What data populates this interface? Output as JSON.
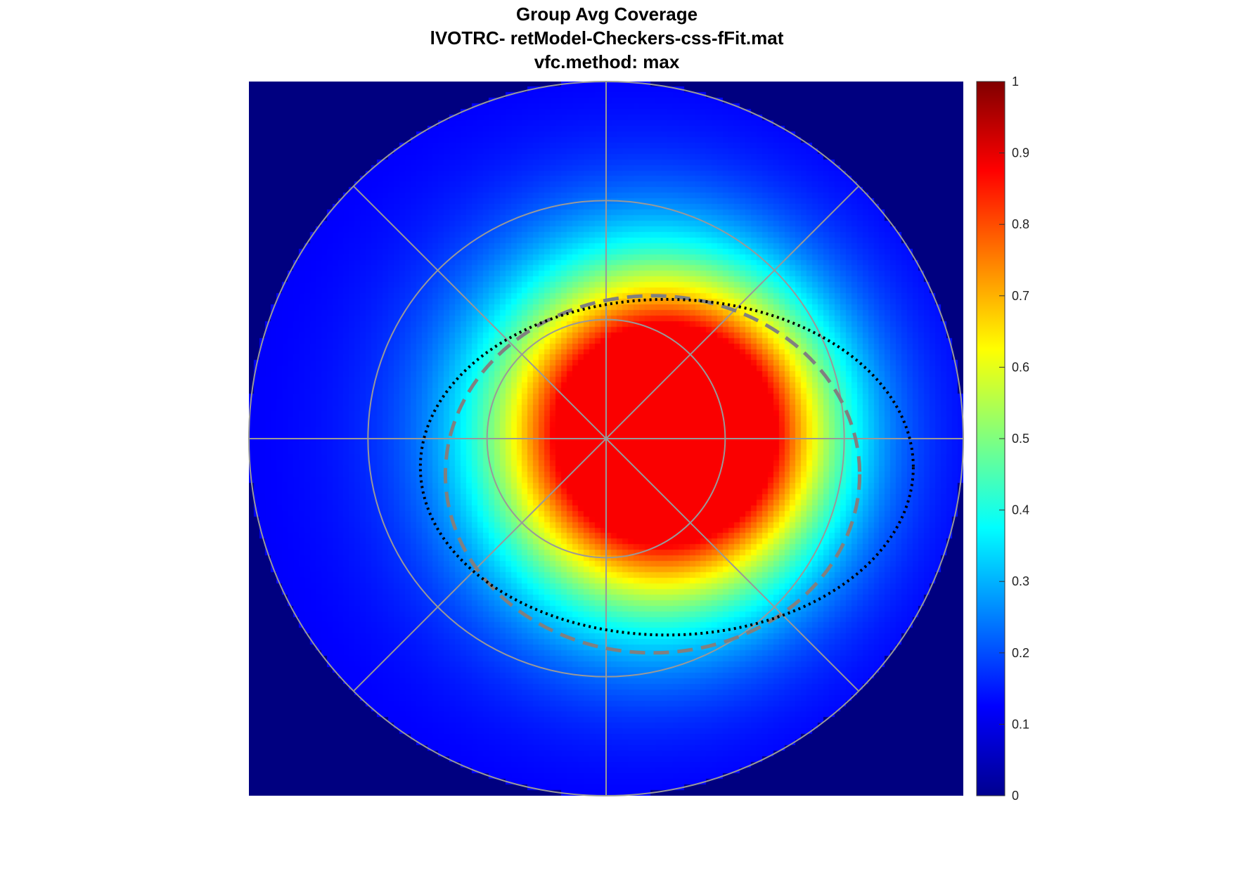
{
  "chart_data": {
    "type": "heatmap",
    "title": [
      "Group Avg Coverage",
      "lVOTRC- retModel-Checkers-css-fFit.mat",
      "vfc.method: max"
    ],
    "plot_kind": "polar visual field coverage map",
    "grid": true,
    "polar_grid": {
      "rings": 3,
      "spokes_deg": [
        0,
        45,
        90,
        135,
        180,
        225,
        270,
        315
      ],
      "color": "#999999"
    },
    "coverage_peak": {
      "x": 0.18,
      "y": 0.15,
      "value": 0.88
    },
    "coverage_blobs": [
      {
        "x": 0.1,
        "y": 0.1,
        "sigma": 0.3,
        "amplitude": 0.52
      },
      {
        "x": 0.28,
        "y": 0.02,
        "sigma": 0.26,
        "amplitude": 0.45
      },
      {
        "x": 0.12,
        "y": -0.12,
        "sigma": 0.3,
        "amplitude": 0.4
      }
    ],
    "background_level": 0.12,
    "outside_field_value": 0.0,
    "contours": [
      {
        "style": "dashed",
        "color": "#808080",
        "cx": 0.13,
        "cy": -0.1,
        "rx": 0.58,
        "ry": 0.5
      },
      {
        "style": "dotted",
        "color": "#000000",
        "cx": 0.17,
        "cy": -0.08,
        "rx": 0.69,
        "ry": 0.47
      }
    ],
    "colormap": "jet",
    "colorbar": {
      "range": [
        0,
        1
      ],
      "ticks": [
        "0",
        "0.1",
        "0.2",
        "0.3",
        "0.4",
        "0.5",
        "0.6",
        "0.7",
        "0.8",
        "0.9",
        "1"
      ],
      "position": "right"
    }
  }
}
